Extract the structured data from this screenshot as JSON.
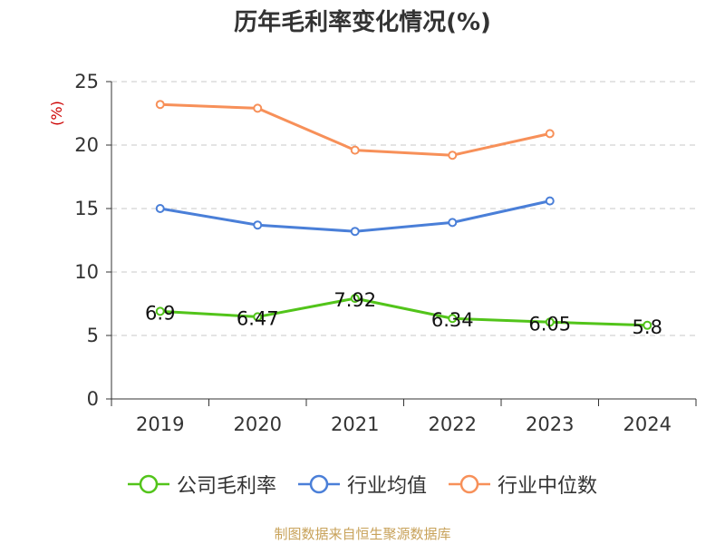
{
  "chart_data": {
    "type": "line",
    "title": "历年毛利率变化情况(%)",
    "ylabel": "(%)",
    "xlabel": "",
    "categories": [
      "2019",
      "2020",
      "2021",
      "2022",
      "2023",
      "2024"
    ],
    "ylim": [
      0,
      25
    ],
    "yticks": [
      0,
      5,
      10,
      15,
      20,
      25
    ],
    "grid": "horizontal dashed",
    "legend_position": "bottom",
    "series": [
      {
        "name": "公司毛利率",
        "color": "#52c41a",
        "values": [
          6.9,
          6.47,
          7.92,
          6.34,
          6.05,
          5.8
        ],
        "data_labels": [
          "6.9",
          "6.47",
          "7.92",
          "6.34",
          "6.05",
          "5.8"
        ]
      },
      {
        "name": "行业均值",
        "color": "#4a7fd8",
        "values": [
          15.0,
          13.7,
          13.2,
          13.9,
          15.6,
          null
        ]
      },
      {
        "name": "行业中位数",
        "color": "#f79059",
        "values": [
          23.2,
          22.9,
          19.6,
          19.2,
          20.9,
          null
        ]
      }
    ]
  },
  "colors": {
    "ylabel": "#cc0000",
    "source": "#c8a25a",
    "axis": "#333333",
    "grid": "#c8c8c8"
  },
  "source_text": "制图数据来自恒生聚源数据库"
}
